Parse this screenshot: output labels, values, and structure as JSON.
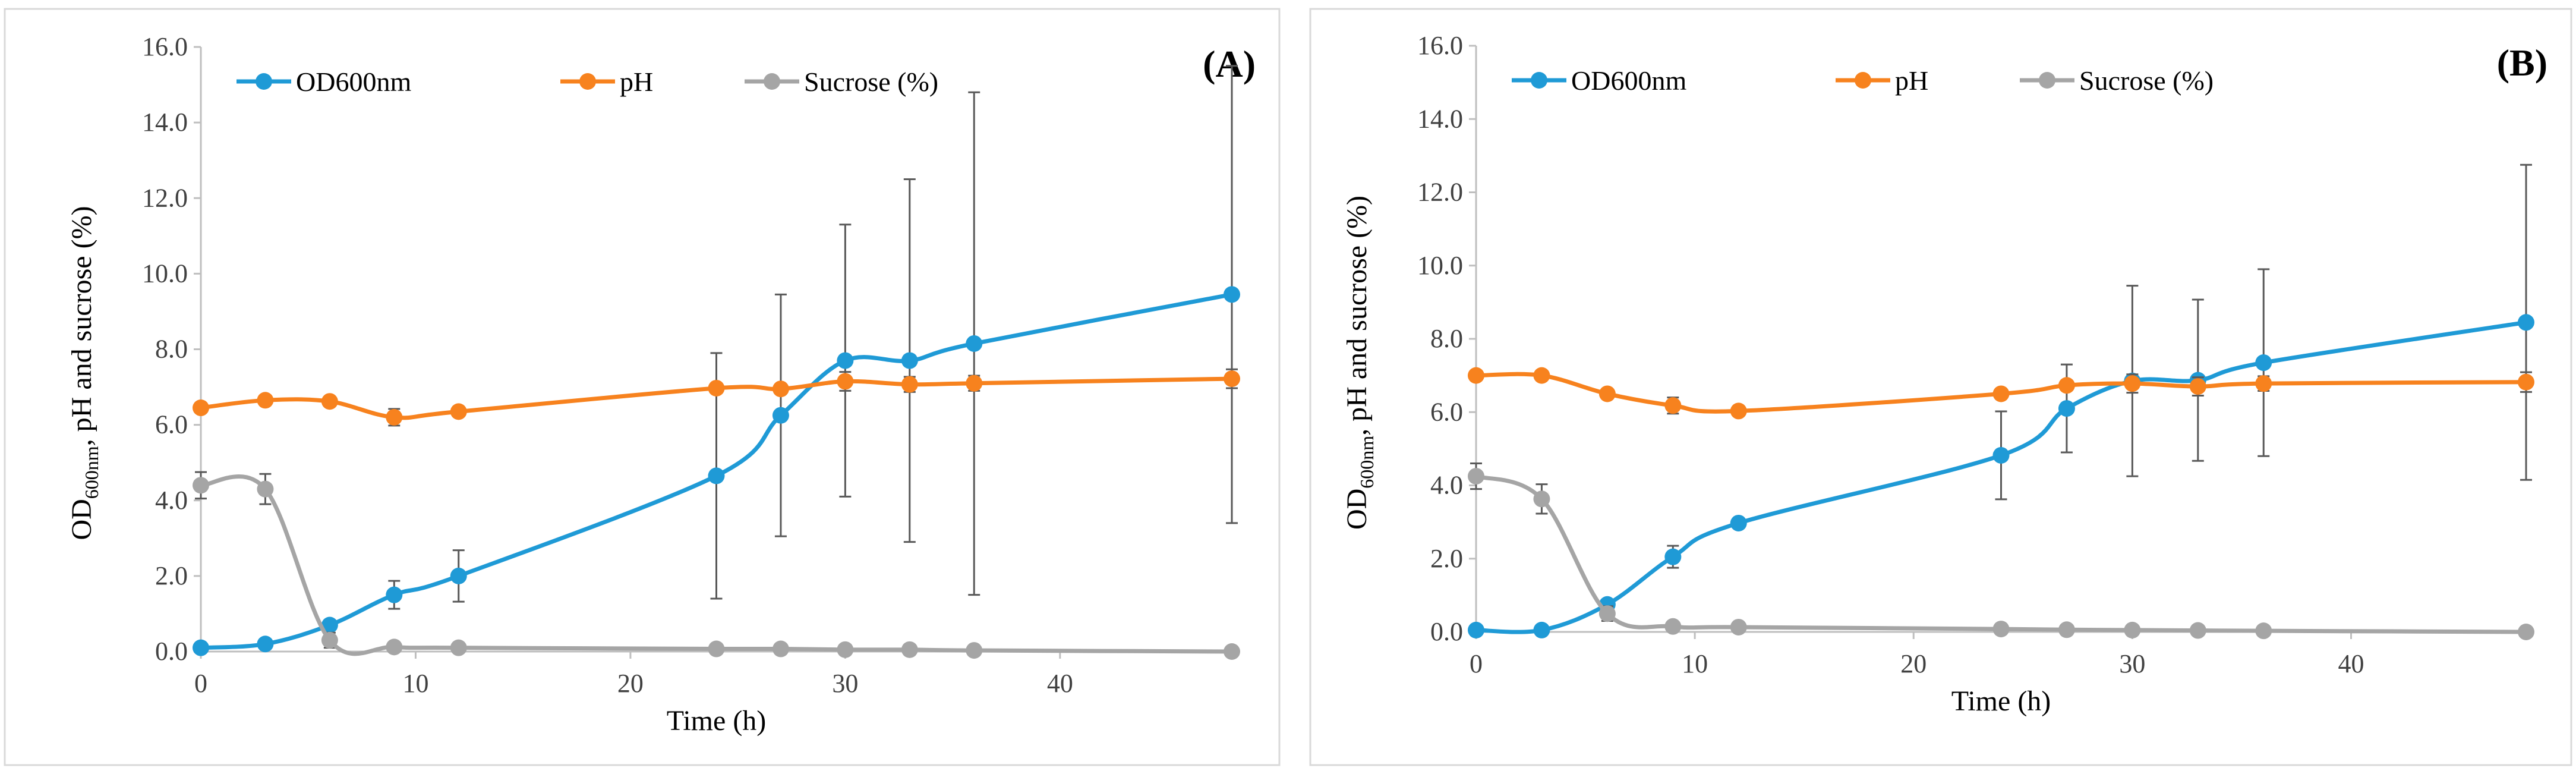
{
  "chart_data": [
    {
      "type": "line",
      "panel_label": "(A)",
      "xlabel": "Time (h)",
      "ylabel_main": "OD",
      "ylabel_sub": "600nm",
      "ylabel_rest": ", pH and sucrose (%)",
      "xlim": [
        0,
        48
      ],
      "ylim": [
        0,
        16
      ],
      "xticks": [
        "0",
        "10",
        "20",
        "30",
        "40"
      ],
      "yticks": [
        "0.0",
        "2.0",
        "4.0",
        "6.0",
        "8.0",
        "10.0",
        "12.0",
        "14.0",
        "16.0"
      ],
      "grid": false,
      "legend_position": "top-left",
      "x": [
        0,
        3,
        6,
        9,
        12,
        24,
        27,
        30,
        33,
        36,
        48
      ],
      "series": [
        {
          "name": "OD600nm",
          "color": "#1f9ad6",
          "values": [
            0.1,
            0.2,
            0.7,
            1.5,
            2.0,
            4.65,
            6.25,
            7.7,
            7.7,
            8.15,
            9.45
          ],
          "errors": [
            0,
            0,
            0,
            0.37,
            0.68,
            3.25,
            3.2,
            3.6,
            4.8,
            6.65,
            6.05
          ]
        },
        {
          "name": "pH",
          "color": "#f7821e",
          "values": [
            6.45,
            6.65,
            6.62,
            6.2,
            6.35,
            6.97,
            6.95,
            7.15,
            7.07,
            7.1,
            7.22
          ],
          "errors": [
            0,
            0,
            0,
            0.22,
            0,
            0,
            0,
            0.25,
            0.2,
            0.2,
            0.25
          ]
        },
        {
          "name": "Sucrose (%)",
          "color": "#a5a5a5",
          "values": [
            4.4,
            4.3,
            0.3,
            0.12,
            0.1,
            0.07,
            0.07,
            0.05,
            0.05,
            0.03,
            0.0
          ],
          "errors": [
            0.35,
            0.4,
            0.2,
            0,
            0,
            0,
            0,
            0,
            0,
            0,
            0
          ]
        }
      ]
    },
    {
      "type": "line",
      "panel_label": "(B)",
      "xlabel": "Time (h)",
      "ylabel_main": "OD",
      "ylabel_sub": "600nm",
      "ylabel_rest": ", pH and sucrose (%)",
      "xlim": [
        0,
        48
      ],
      "ylim": [
        0,
        16
      ],
      "xticks": [
        "0",
        "10",
        "20",
        "30",
        "40"
      ],
      "yticks": [
        "0.0",
        "2.0",
        "4.0",
        "6.0",
        "8.0",
        "10.0",
        "12.0",
        "14.0",
        "16.0"
      ],
      "grid": false,
      "legend_position": "top-left",
      "x": [
        0,
        3,
        6,
        9,
        12,
        24,
        27,
        30,
        33,
        36,
        48
      ],
      "series": [
        {
          "name": "OD600nm",
          "color": "#1f9ad6",
          "values": [
            0.05,
            0.05,
            0.75,
            2.05,
            2.97,
            4.82,
            6.1,
            6.85,
            6.87,
            7.35,
            8.45
          ],
          "errors": [
            0,
            0,
            0,
            0.3,
            0,
            1.2,
            1.2,
            2.6,
            2.2,
            2.55,
            4.3
          ]
        },
        {
          "name": "pH",
          "color": "#f7821e",
          "values": [
            7.0,
            7.0,
            6.5,
            6.18,
            6.03,
            6.5,
            6.73,
            6.78,
            6.7,
            6.78,
            6.82
          ],
          "errors": [
            0,
            0,
            0,
            0.22,
            0,
            0,
            0,
            0.25,
            0.25,
            0.2,
            0.27
          ]
        },
        {
          "name": "Sucrose (%)",
          "color": "#a5a5a5",
          "values": [
            4.25,
            3.63,
            0.5,
            0.15,
            0.13,
            0.08,
            0.06,
            0.05,
            0.04,
            0.03,
            0.0
          ],
          "errors": [
            0.35,
            0.4,
            0.2,
            0,
            0,
            0,
            0,
            0,
            0,
            0,
            0
          ]
        }
      ]
    }
  ]
}
